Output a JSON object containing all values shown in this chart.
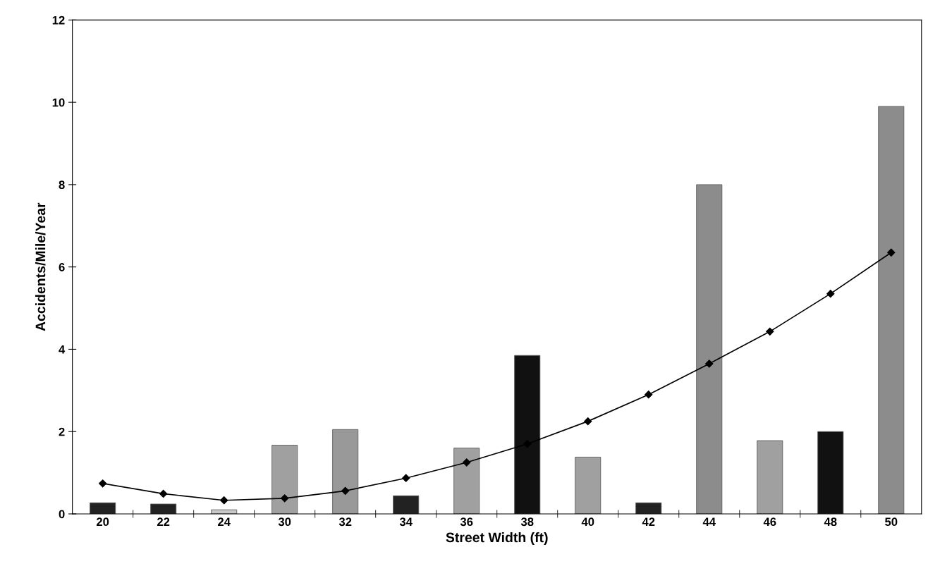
{
  "chart_data": {
    "type": "bar",
    "xlabel": "Street Width (ft)",
    "ylabel": "Accidents/Mile/Year",
    "categories": [
      "20",
      "22",
      "24",
      "30",
      "32",
      "34",
      "36",
      "38",
      "40",
      "42",
      "44",
      "46",
      "48",
      "50"
    ],
    "ylim": [
      0,
      12
    ],
    "yticks": [
      0,
      2,
      4,
      6,
      8,
      10,
      12
    ],
    "grid": false,
    "series": [
      {
        "colors": [
          "#222222",
          "#222222",
          "#c8c8c8",
          "#a0a0a0",
          "#999999",
          "#222222",
          "#a0a0a0",
          "#111111",
          "#a0a0a0",
          "#222222",
          "#8c8c8c",
          "#a0a0a0",
          "#111111",
          "#8c8c8c"
        ],
        "values": [
          0.27,
          0.24,
          0.1,
          1.67,
          2.05,
          0.44,
          1.6,
          3.85,
          1.38,
          0.27,
          8.0,
          1.78,
          2.0,
          9.9
        ]
      },
      {
        "type": "line",
        "color": "#000000",
        "marker": "diamond",
        "line_style": "solid",
        "values": [
          0.74,
          0.49,
          0.33,
          0.38,
          0.56,
          0.87,
          1.25,
          1.7,
          2.25,
          2.9,
          3.65,
          4.43,
          5.35,
          6.35
        ]
      }
    ]
  }
}
